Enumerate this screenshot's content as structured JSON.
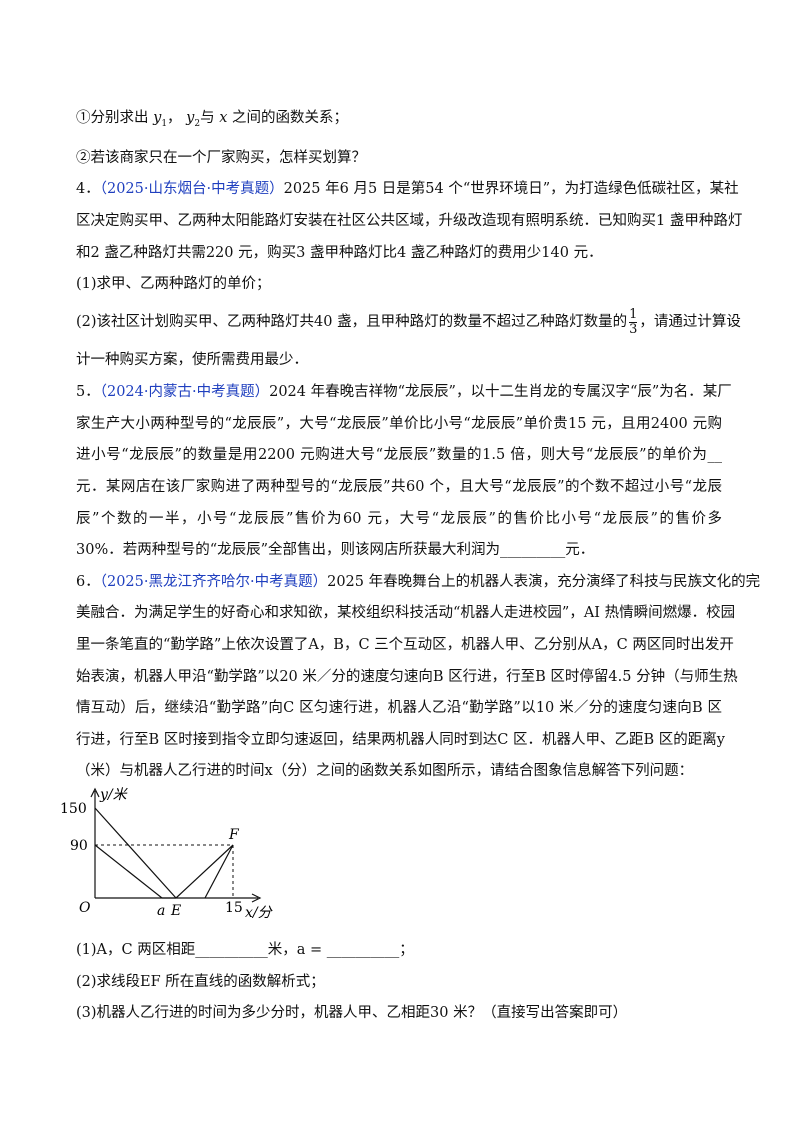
{
  "q3": {
    "line1": {
      "prefix": "①分别求出",
      "y1": "y",
      "y1_sub": "1",
      "sep": "，",
      "y2": "y",
      "y2_sub": "2",
      "mid": "与",
      "x": "x",
      "suffix": "之间的函数关系；"
    },
    "line2": "②若该商家只在一个厂家购买，怎样买划算？"
  },
  "q4": {
    "num": "4．",
    "source": "（2025·山东烟台·中考真题）",
    "lines": [
      "2025 年6 月5 日是第54 个“世界环境日”，为打造绿色低碳社区，某社",
      "区决定购买甲、乙两种太阳能路灯安装在社区公共区域，升级改造现有照明系统．已知购买1 盏甲种路灯",
      "和2 盏乙种路灯共需220 元，购买3 盏甲种路灯比4 盏乙种路灯的费用少140 元．"
    ],
    "part1": "(1)求甲、乙两种路灯的单价；",
    "part2": {
      "before": "(2)该社区计划购买甲、乙两种路灯共40 盏，且甲种路灯的数量不超过乙种路灯数量的",
      "frac_num": "1",
      "frac_den": "3",
      "after": "，请通过计算设",
      "cont": "计一种购买方案，使所需费用最少．"
    }
  },
  "q5": {
    "num": "5．",
    "source": "（2024·内蒙古·中考真题）",
    "lines": [
      "2024 年春晚吉祥物“龙辰辰”，以十二生肖龙的专属汉字“辰”为名．某厂",
      "家生产大小两种型号的“龙辰辰”，大号“龙辰辰”单价比小号“龙辰辰”单价贵15 元，且用2400 元购",
      "进小号“龙辰辰”的数量是用2200 元购进大号“龙辰辰”数量的1.5 倍，则大号“龙辰辰”的单价为__",
      "元．某网店在该厂家购进了两种型号的“龙辰辰”共60 个，且大号“龙辰辰”的个数不超过小号“龙辰",
      "辰”个数的一半，小号“龙辰辰”售价为60 元，大号“龙辰辰”的售价比小号“龙辰辰”的售价多",
      "30%．若两种型号的“龙辰辰”全部售出，则该网店所获最大利润为_________元．"
    ]
  },
  "q6": {
    "num": "6．",
    "source": "（2025·黑龙江齐齐哈尔·中考真题）",
    "lines": [
      "2025 年春晚舞台上的机器人表演，充分演绎了科技与民族文化的完",
      "美融合．为满足学生的好奇心和求知欲，某校组织科技活动“机器人走进校园”，AI 热情瞬间燃爆．校园",
      "里一条笔直的“勤学路”上依次设置了A，B，C 三个互动区，机器人甲、乙分别从A，C 两区同时出发开",
      "始表演，机器人甲沿“勤学路”以20 米／分的速度匀速向B 区行进，行至B 区时停留4.5 分钟（与师生热",
      "情互动）后，继续沿“勤学路”向C 区匀速行进，机器人乙沿“勤学路”以10 米／分的速度匀速向B 区",
      "行进，行至B 区时接到指令立即匀速返回，结果两机器人同时到达C 区．机器人甲、乙距B 区的距离y",
      "（米）与机器人乙行进的时间x（分）之间的函数关系如图所示，请结合图象信息解答下列问题："
    ],
    "figure": {
      "y_axis": "y/米",
      "x_axis": "x/分",
      "y150": "150",
      "y90": "90",
      "origin": "O",
      "a": "a",
      "E": "E",
      "x15": "15",
      "F": "F"
    },
    "part1": "(1)A，C 两区相距__________米，a = __________；",
    "part2": "(2)求线段EF 所在直线的函数解析式；",
    "part3": "(3)机器人乙行进的时间为多少分时，机器人甲、乙相距30 米？（直接写出答案即可）"
  }
}
